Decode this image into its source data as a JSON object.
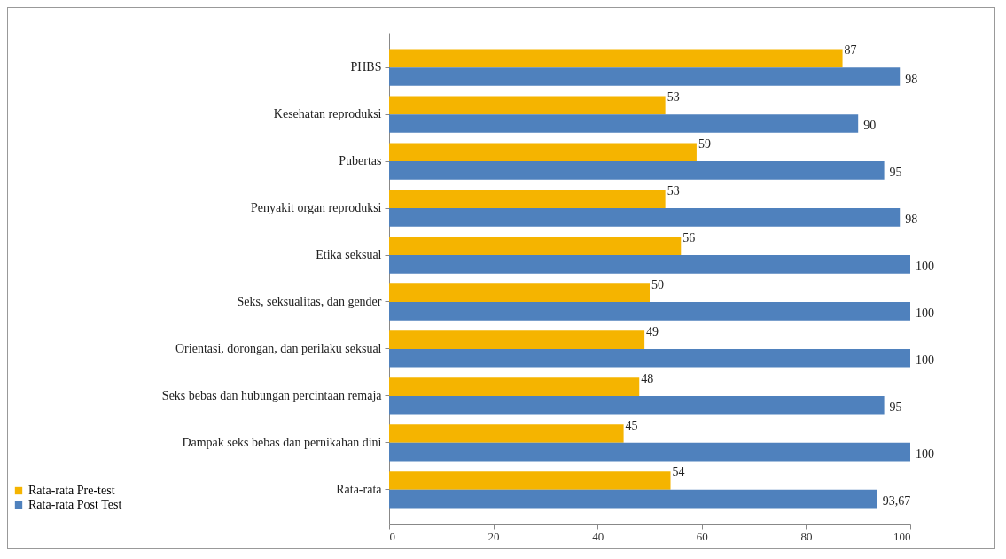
{
  "chart_data": {
    "type": "bar",
    "orientation": "horizontal",
    "categories": [
      "PHBS",
      "Kesehatan reproduksi",
      "Pubertas",
      "Penyakit organ reproduksi",
      "Etika seksual",
      "Seks, seksualitas, dan gender",
      "Orientasi, dorongan, dan perilaku seksual",
      "Seks bebas dan hubungan percintaan remaja",
      "Dampak seks bebas dan pernikahan dini",
      "Rata-rata"
    ],
    "series": [
      {
        "name": "Rata-rata Pre-test",
        "color": "#f5b400",
        "values": [
          87,
          53,
          59,
          53,
          56,
          50,
          49,
          48,
          45,
          54
        ],
        "value_labels": [
          "87",
          "53",
          "59",
          "53",
          "56",
          "50",
          "49",
          "48",
          "45",
          "54"
        ]
      },
      {
        "name": "Rata-rata Post Test",
        "color": "#4f81bd",
        "values": [
          98,
          90,
          95,
          98,
          100,
          100,
          100,
          95,
          100,
          93.67
        ],
        "value_labels": [
          "98",
          "90",
          "95",
          "98",
          "100",
          "100",
          "100",
          "95",
          "100",
          "93,67"
        ]
      }
    ],
    "xlim": [
      0,
      100
    ],
    "xticks": [
      0,
      20,
      40,
      60,
      80,
      100
    ],
    "legend": "bottom left"
  }
}
